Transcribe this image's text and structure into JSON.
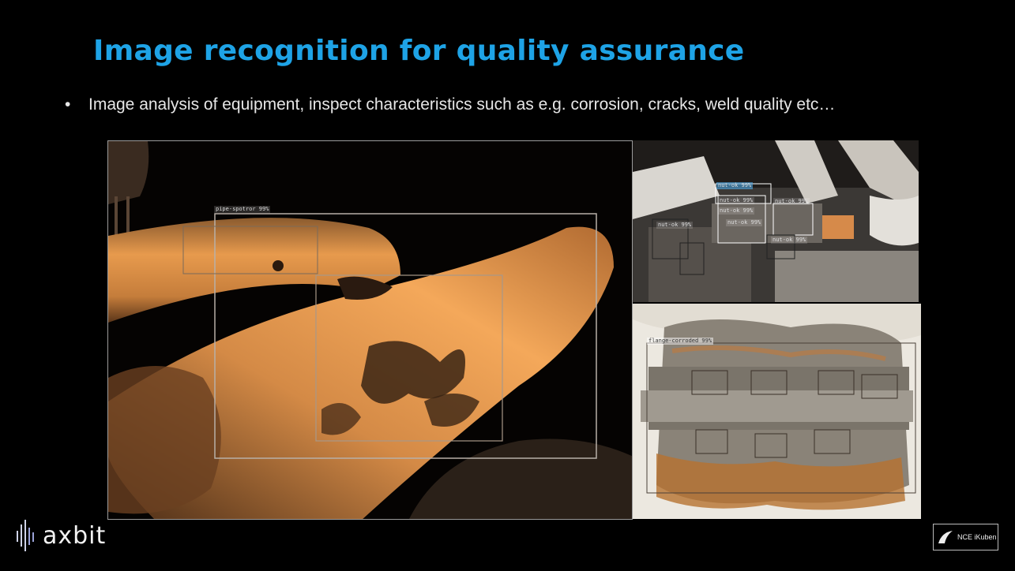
{
  "slide": {
    "title": "Image recognition for quality assurance",
    "bullet": "Image analysis of equipment, inspect characteristics such as e.g. corrosion, cracks, weld quality etc…"
  },
  "images": {
    "main_label": "pipe-spotror 99%",
    "tr_labels": [
      "nut-ok 99%",
      "nut-ok 99%",
      "nut-ok 99%",
      "nut-ok 99%",
      "nut-ok 99%",
      "nut-ok 99%",
      "nut-ok 99%"
    ],
    "br_label": "flange-corroded 99%"
  },
  "footer": {
    "brand": "axbit",
    "partner": "NCE iKuben"
  },
  "colors": {
    "title": "#1ea3e6",
    "pipe_orange": "#e8a055",
    "rust": "#c8702a"
  }
}
